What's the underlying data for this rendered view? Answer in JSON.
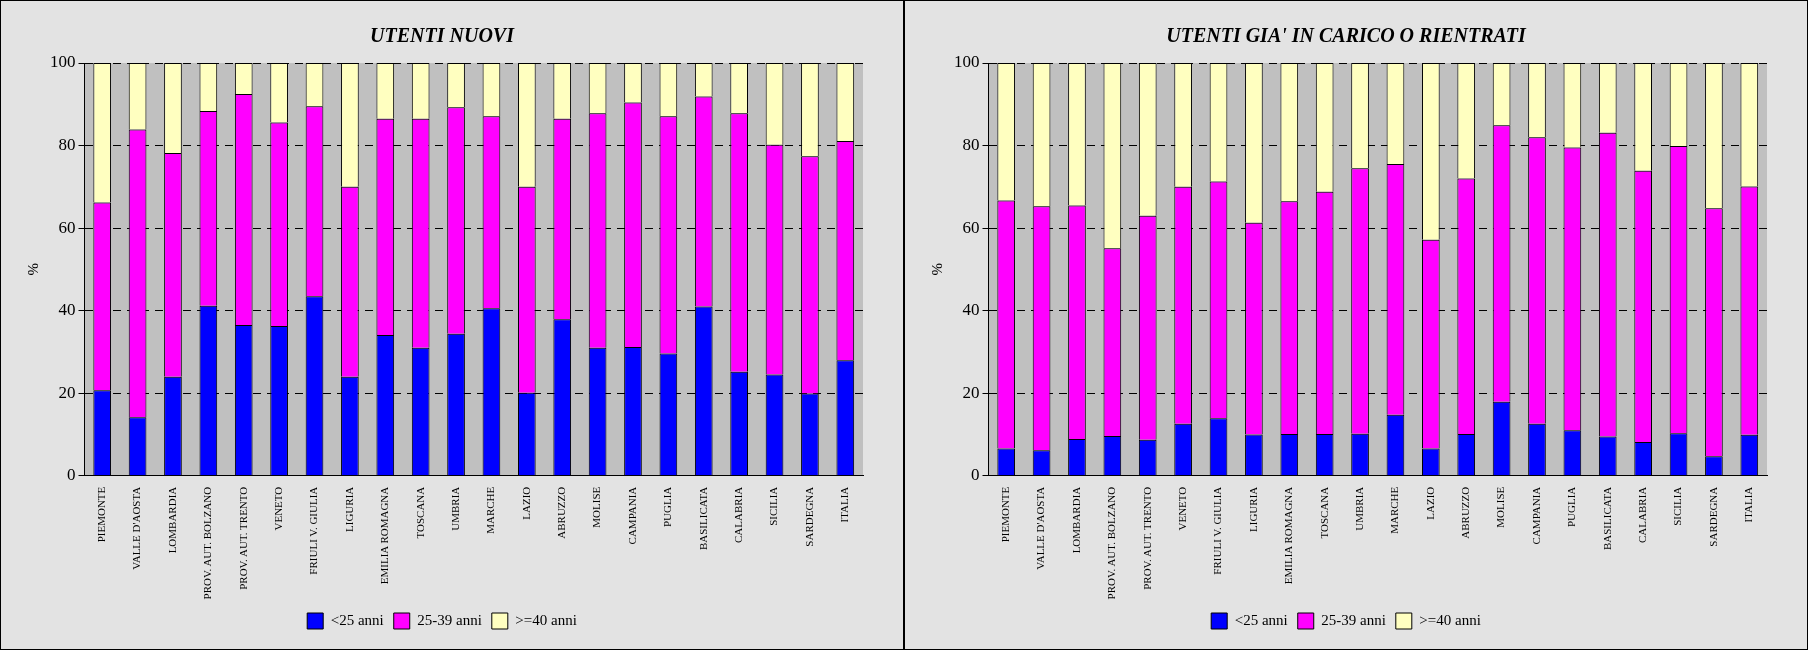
{
  "chart_data": [
    {
      "type": "bar",
      "title": "UTENTI NUOVI",
      "ylabel": "%",
      "stacked": true,
      "legend": "bottom",
      "grid": "y",
      "categories": [
        "PIEMONTE",
        "VALLE D'AOSTA",
        "LOMBARDIA",
        "PROV. AUT. BOLZANO",
        "PROV. AUT. TRENTO",
        "VENETO",
        "FRIULI V. GIULIA",
        "LIGURIA",
        "EMILIA ROMAGNA",
        "TOSCANA",
        "UMBRIA",
        "MARCHE",
        "LAZIO",
        "ABRUZZO",
        "MOLISE",
        "CAMPANIA",
        "PUGLIA",
        "BASILICATA",
        "CALABRIA",
        "SICILIA",
        "SARDEGNA",
        "ITALIA"
      ],
      "ylim": [
        0,
        100
      ],
      "yticks": [
        0,
        20,
        40,
        60,
        80,
        100
      ],
      "series": [
        {
          "name": "<25 anni",
          "color": "#0000ff",
          "values": [
            20.7,
            14.2,
            24.0,
            41.2,
            36.5,
            36.3,
            43.5,
            24.0,
            34.1,
            31.0,
            34.4,
            40.6,
            20.1,
            37.9,
            31.0,
            31.2,
            29.6,
            41.0,
            25.2,
            24.5,
            19.9,
            28.0
          ]
        },
        {
          "name": "25-39 anni",
          "color": "#ff00ff",
          "values": [
            45.5,
            69.7,
            54.2,
            47.2,
            56.0,
            49.3,
            46.0,
            46.0,
            52.4,
            55.5,
            54.9,
            46.5,
            49.9,
            48.6,
            56.8,
            59.2,
            57.5,
            50.9,
            62.6,
            55.7,
            57.5,
            53.1
          ]
        },
        {
          "name": ">=40 anni",
          "color": "#ffffc0",
          "values": [
            33.8,
            16.1,
            21.8,
            11.6,
            7.5,
            14.4,
            10.5,
            30.0,
            13.5,
            13.5,
            10.7,
            12.9,
            30.0,
            13.5,
            12.2,
            9.6,
            12.9,
            8.1,
            12.2,
            19.8,
            22.6,
            18.9
          ]
        }
      ]
    },
    {
      "type": "bar",
      "title": "UTENTI GIA' IN CARICO O RIENTRATI",
      "ylabel": "%",
      "stacked": true,
      "legend": "bottom",
      "grid": "y",
      "categories": [
        "PIEMONTE",
        "VALLE D'AOSTA",
        "LOMBARDIA",
        "PROV. AUT. BOLZANO",
        "PROV. AUT. TRENTO",
        "VENETO",
        "FRIULI V. GIULIA",
        "LIGURIA",
        "EMILIA ROMAGNA",
        "TOSCANA",
        "UMBRIA",
        "MARCHE",
        "LAZIO",
        "ABRUZZO",
        "MOLISE",
        "CAMPANIA",
        "PUGLIA",
        "BASILICATA",
        "CALABRIA",
        "SICILIA",
        "SARDEGNA",
        "ITALIA"
      ],
      "ylim": [
        0,
        100
      ],
      "yticks": [
        0,
        20,
        40,
        60,
        80,
        100
      ],
      "series": [
        {
          "name": "<25 anni",
          "color": "#0000ff",
          "values": [
            6.6,
            6.2,
            8.9,
            9.6,
            8.7,
            12.6,
            13.9,
            10.0,
            10.1,
            10.1,
            10.2,
            14.8,
            6.6,
            10.1,
            17.9,
            12.6,
            11.0,
            9.5,
            8.2,
            10.3,
            4.7,
            9.9
          ]
        },
        {
          "name": "25-39 anni",
          "color": "#ff00ff",
          "values": [
            60.1,
            59.1,
            56.6,
            45.5,
            54.3,
            57.4,
            57.4,
            51.3,
            56.4,
            58.7,
            64.3,
            60.7,
            50.6,
            61.9,
            67.0,
            69.4,
            68.5,
            73.6,
            65.7,
            69.6,
            60.1,
            60.2
          ]
        },
        {
          "name": ">=40 anni",
          "color": "#ffffc0",
          "values": [
            33.3,
            34.7,
            34.5,
            44.9,
            37.0,
            30.0,
            28.7,
            38.7,
            33.5,
            31.2,
            25.5,
            24.5,
            42.8,
            28.0,
            15.1,
            18.0,
            20.5,
            16.9,
            26.1,
            20.1,
            35.2,
            29.9
          ]
        }
      ]
    }
  ]
}
